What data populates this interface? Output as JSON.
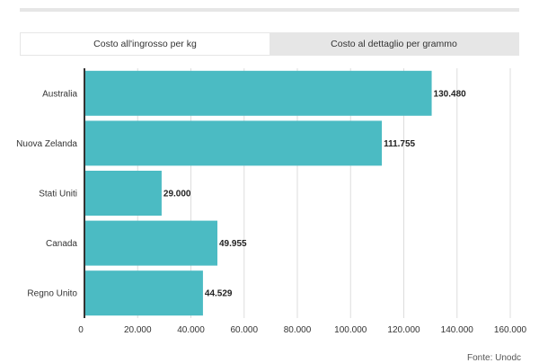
{
  "tabs": [
    {
      "label": "Costo all'ingrosso per kg",
      "active": true
    },
    {
      "label": "Costo al dettaglio per grammo",
      "active": false
    }
  ],
  "colors": {
    "bar": "#4bbbc3",
    "axis": "#333333",
    "grid": "#dddddd"
  },
  "chart_data": {
    "type": "bar",
    "orientation": "horizontal",
    "categories": [
      "Australia",
      "Nuova Zelanda",
      "Stati Uniti",
      "Canada",
      "Regno Unito"
    ],
    "values": [
      130480,
      111755,
      29000,
      49955,
      44529
    ],
    "value_labels": [
      "130.480",
      "111.755",
      "29.000",
      "49.955",
      "44.529"
    ],
    "x_ticks": [
      0,
      20000,
      40000,
      60000,
      80000,
      100000,
      120000,
      140000,
      160000
    ],
    "x_tick_labels": [
      "0",
      "20.000",
      "40.000",
      "60.000",
      "80.000",
      "100.000",
      "120.000",
      "140.000",
      "160.000"
    ],
    "xlim": [
      0,
      160000
    ],
    "title": "",
    "xlabel": "",
    "ylabel": ""
  },
  "source": "Fonte: Unodc"
}
